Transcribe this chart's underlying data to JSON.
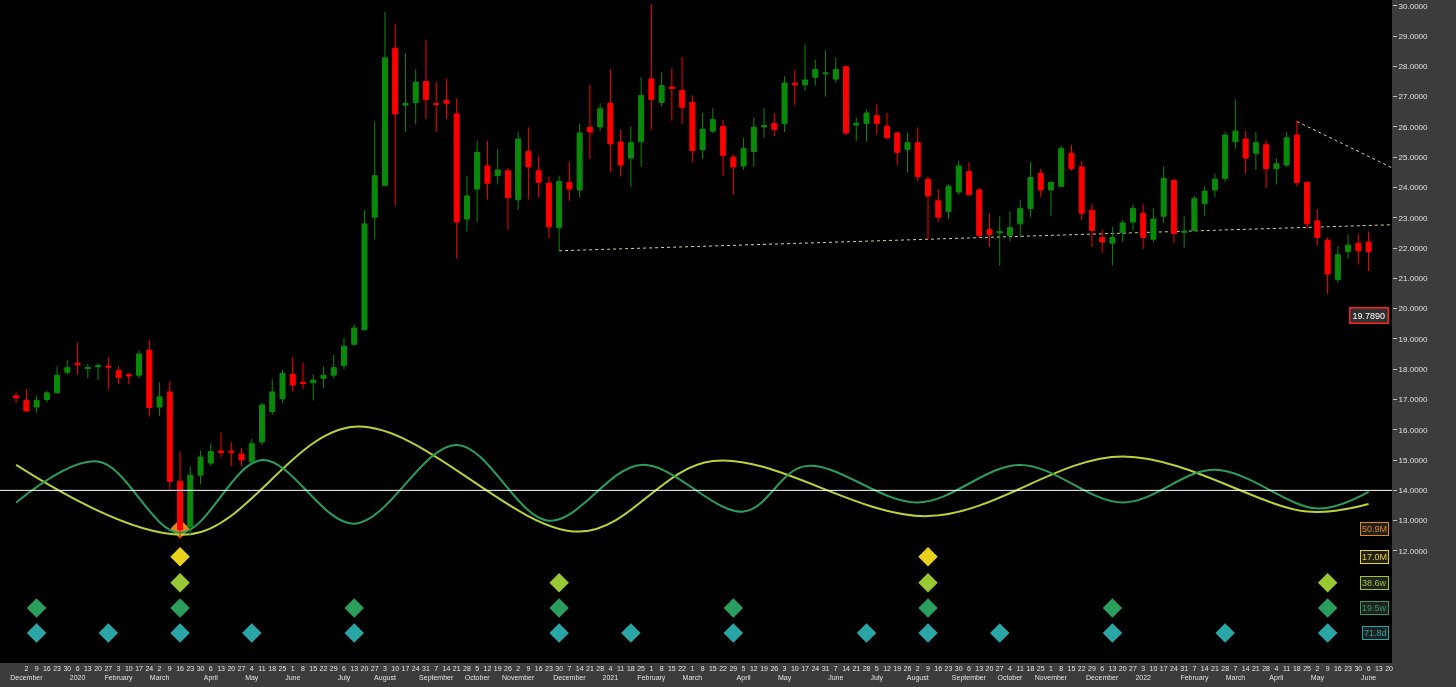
{
  "chart_data": {
    "type": "candlestick",
    "xlim": [
      "2019-11-14",
      "2022-06-22"
    ],
    "ylim": [
      8.3,
      30.19
    ],
    "yticks": [
      {
        "value": 12,
        "label": "12.0000"
      },
      {
        "value": 13,
        "label": "13.0000"
      },
      {
        "value": 14,
        "label": "14.0000"
      },
      {
        "value": 15,
        "label": "15.0000"
      },
      {
        "value": 16,
        "label": "16.0000"
      },
      {
        "value": 17,
        "label": "17.0000"
      },
      {
        "value": 18,
        "label": "18.0000"
      },
      {
        "value": 19,
        "label": "19.0000"
      },
      {
        "value": 20,
        "label": "20.0000"
      },
      {
        "value": 21,
        "label": "21.0000"
      },
      {
        "value": 22,
        "label": "22.0000"
      },
      {
        "value": 23,
        "label": "23.0000"
      },
      {
        "value": 24,
        "label": "24.0000"
      },
      {
        "value": 25,
        "label": "25.0000"
      },
      {
        "value": 26,
        "label": "26.0000"
      },
      {
        "value": 27,
        "label": "27.0000"
      },
      {
        "value": 28,
        "label": "28.0000"
      },
      {
        "value": 29,
        "label": "29.0000"
      },
      {
        "value": 30,
        "label": "30.0000"
      }
    ],
    "xticks": [
      {
        "value": "2019-12-02",
        "label": "2\nDecember"
      },
      {
        "value": "2019-12-09",
        "label": "9"
      },
      {
        "value": "2019-12-16",
        "label": "16"
      },
      {
        "value": "2019-12-23",
        "label": "23"
      },
      {
        "value": "2019-12-30",
        "label": "30"
      },
      {
        "value": "2020-01-06",
        "label": "6\n2020"
      },
      {
        "value": "2020-01-13",
        "label": "13"
      },
      {
        "value": "2020-01-20",
        "label": "20"
      },
      {
        "value": "2020-01-27",
        "label": "27"
      },
      {
        "value": "2020-02-03",
        "label": "3\nFebruary"
      },
      {
        "value": "2020-02-10",
        "label": "10"
      },
      {
        "value": "2020-02-17",
        "label": "17"
      },
      {
        "value": "2020-02-24",
        "label": "24"
      },
      {
        "value": "2020-03-02",
        "label": "2\nMarch"
      },
      {
        "value": "2020-03-09",
        "label": "9"
      },
      {
        "value": "2020-03-16",
        "label": "16"
      },
      {
        "value": "2020-03-23",
        "label": "23"
      },
      {
        "value": "2020-03-30",
        "label": "30"
      },
      {
        "value": "2020-04-06",
        "label": "6\nApril"
      },
      {
        "value": "2020-04-13",
        "label": "13"
      },
      {
        "value": "2020-04-20",
        "label": "20"
      },
      {
        "value": "2020-04-27",
        "label": "27"
      },
      {
        "value": "2020-05-04",
        "label": "4\nMay"
      },
      {
        "value": "2020-05-11",
        "label": "11"
      },
      {
        "value": "2020-05-18",
        "label": "18"
      },
      {
        "value": "2020-05-25",
        "label": "25"
      },
      {
        "value": "2020-06-01",
        "label": "1\nJune"
      },
      {
        "value": "2020-06-08",
        "label": "8"
      },
      {
        "value": "2020-06-15",
        "label": "15"
      },
      {
        "value": "2020-06-22",
        "label": "22"
      },
      {
        "value": "2020-06-29",
        "label": "29"
      },
      {
        "value": "2020-07-06",
        "label": "6\nJuly"
      },
      {
        "value": "2020-07-13",
        "label": "13"
      },
      {
        "value": "2020-07-20",
        "label": "20"
      },
      {
        "value": "2020-07-27",
        "label": "27"
      },
      {
        "value": "2020-08-03",
        "label": "3\nAugust"
      },
      {
        "value": "2020-08-10",
        "label": "10"
      },
      {
        "value": "2020-08-17",
        "label": "17"
      },
      {
        "value": "2020-08-24",
        "label": "24"
      },
      {
        "value": "2020-08-31",
        "label": "31"
      },
      {
        "value": "2020-09-07",
        "label": "7\nSeptember"
      },
      {
        "value": "2020-09-14",
        "label": "14"
      },
      {
        "value": "2020-09-21",
        "label": "21"
      },
      {
        "value": "2020-09-28",
        "label": "28"
      },
      {
        "value": "2020-10-05",
        "label": "5\nOctober"
      },
      {
        "value": "2020-10-12",
        "label": "12"
      },
      {
        "value": "2020-10-19",
        "label": "19"
      },
      {
        "value": "2020-10-26",
        "label": "26"
      },
      {
        "value": "2020-11-02",
        "label": "2\nNovember"
      },
      {
        "value": "2020-11-09",
        "label": "9"
      },
      {
        "value": "2020-11-16",
        "label": "16"
      },
      {
        "value": "2020-11-23",
        "label": "23"
      },
      {
        "value": "2020-11-30",
        "label": "30"
      },
      {
        "value": "2020-12-07",
        "label": "7\nDecember"
      },
      {
        "value": "2020-12-14",
        "label": "14"
      },
      {
        "value": "2020-12-21",
        "label": "21"
      },
      {
        "value": "2020-12-28",
        "label": "28"
      },
      {
        "value": "2021-01-04",
        "label": "4\n2021"
      },
      {
        "value": "2021-01-11",
        "label": "11"
      },
      {
        "value": "2021-01-18",
        "label": "18"
      },
      {
        "value": "2021-01-25",
        "label": "25"
      },
      {
        "value": "2021-02-01",
        "label": "1\nFebruary"
      },
      {
        "value": "2021-02-08",
        "label": "8"
      },
      {
        "value": "2021-02-15",
        "label": "15"
      },
      {
        "value": "2021-02-22",
        "label": "22"
      },
      {
        "value": "2021-03-01",
        "label": "1\nMarch"
      },
      {
        "value": "2021-03-08",
        "label": "8"
      },
      {
        "value": "2021-03-15",
        "label": "15"
      },
      {
        "value": "2021-03-22",
        "label": "22"
      },
      {
        "value": "2021-03-29",
        "label": "29"
      },
      {
        "value": "2021-04-05",
        "label": "5\nApril"
      },
      {
        "value": "2021-04-12",
        "label": "12"
      },
      {
        "value": "2021-04-19",
        "label": "19"
      },
      {
        "value": "2021-04-26",
        "label": "26"
      },
      {
        "value": "2021-05-03",
        "label": "3\nMay"
      },
      {
        "value": "2021-05-10",
        "label": "10"
      },
      {
        "value": "2021-05-17",
        "label": "17"
      },
      {
        "value": "2021-05-24",
        "label": "24"
      },
      {
        "value": "2021-05-31",
        "label": "31"
      },
      {
        "value": "2021-06-07",
        "label": "7\nJune"
      },
      {
        "value": "2021-06-14",
        "label": "14"
      },
      {
        "value": "2021-06-21",
        "label": "21"
      },
      {
        "value": "2021-06-28",
        "label": "28"
      },
      {
        "value": "2021-07-05",
        "label": "5\nJuly"
      },
      {
        "value": "2021-07-12",
        "label": "12"
      },
      {
        "value": "2021-07-19",
        "label": "19"
      },
      {
        "value": "2021-07-26",
        "label": "26"
      },
      {
        "value": "2021-08-02",
        "label": "2\nAugust"
      },
      {
        "value": "2021-08-09",
        "label": "9"
      },
      {
        "value": "2021-08-16",
        "label": "16"
      },
      {
        "value": "2021-08-23",
        "label": "23"
      },
      {
        "value": "2021-08-30",
        "label": "30"
      },
      {
        "value": "2021-09-06",
        "label": "6\nSeptember"
      },
      {
        "value": "2021-09-13",
        "label": "13"
      },
      {
        "value": "2021-09-20",
        "label": "20"
      },
      {
        "value": "2021-09-27",
        "label": "27"
      },
      {
        "value": "2021-10-04",
        "label": "4\nOctober"
      },
      {
        "value": "2021-10-11",
        "label": "11"
      },
      {
        "value": "2021-10-18",
        "label": "18"
      },
      {
        "value": "2021-10-25",
        "label": "25"
      },
      {
        "value": "2021-11-01",
        "label": "1\nNovember"
      },
      {
        "value": "2021-11-08",
        "label": "8"
      },
      {
        "value": "2021-11-15",
        "label": "15"
      },
      {
        "value": "2021-11-22",
        "label": "22"
      },
      {
        "value": "2021-11-29",
        "label": "29"
      },
      {
        "value": "2021-12-06",
        "label": "6\nDecember"
      },
      {
        "value": "2021-12-13",
        "label": "13"
      },
      {
        "value": "2021-12-20",
        "label": "20"
      },
      {
        "value": "2021-12-27",
        "label": "27"
      },
      {
        "value": "2022-01-03",
        "label": "3\n2022"
      },
      {
        "value": "2022-01-10",
        "label": "10"
      },
      {
        "value": "2022-01-17",
        "label": "17"
      },
      {
        "value": "2022-01-24",
        "label": "24"
      },
      {
        "value": "2022-01-31",
        "label": "31"
      },
      {
        "value": "2022-02-07",
        "label": "7\nFebruary"
      },
      {
        "value": "2022-02-14",
        "label": "14"
      },
      {
        "value": "2022-02-21",
        "label": "21"
      },
      {
        "value": "2022-02-28",
        "label": "28"
      },
      {
        "value": "2022-03-07",
        "label": "7\nMarch"
      },
      {
        "value": "2022-03-14",
        "label": "14"
      },
      {
        "value": "2022-03-21",
        "label": "21"
      },
      {
        "value": "2022-03-28",
        "label": "28"
      },
      {
        "value": "2022-04-04",
        "label": "4\nApril"
      },
      {
        "value": "2022-04-11",
        "label": "11"
      },
      {
        "value": "2022-04-18",
        "label": "18"
      },
      {
        "value": "2022-04-25",
        "label": "25"
      },
      {
        "value": "2022-05-02",
        "label": "2\nMay"
      },
      {
        "value": "2022-05-09",
        "label": "9"
      },
      {
        "value": "2022-05-16",
        "label": "16"
      },
      {
        "value": "2022-05-23",
        "label": "23"
      },
      {
        "value": "2022-05-30",
        "label": "30"
      },
      {
        "value": "2022-06-06",
        "label": "6\nJune"
      },
      {
        "value": "2022-06-13",
        "label": "13"
      },
      {
        "value": "2022-06-20",
        "label": "20"
      }
    ],
    "grid": false,
    "legend": false,
    "ref_lines": [
      {
        "axis": "y",
        "value": 14.0,
        "color": "#ffffff"
      }
    ],
    "annotations": [
      {
        "text": "19.7890",
        "x": "2022-06-06",
        "y": 19.789
      }
    ],
    "series": [
      {
        "type": "line",
        "color": "#b8d436",
        "x": [
          "2019-11-25",
          "2020-03-23",
          "2020-07-13",
          "2020-12-14",
          "2021-03-15",
          "2021-08-09",
          "2021-12-20",
          "2022-04-25",
          "2022-06-06"
        ],
        "values": [
          14.84,
          12.55,
          16.1,
          12.64,
          14.97,
          13.15,
          15.12,
          13.3,
          13.55
        ]
      },
      {
        "type": "line",
        "color": "#2a9e5c",
        "x": [
          "2019-11-25",
          "2020-01-20",
          "2020-03-16",
          "2020-05-11",
          "2020-07-13",
          "2020-09-21",
          "2020-11-23",
          "2021-01-25",
          "2021-04-05",
          "2021-05-17",
          "2021-08-02",
          "2021-10-11",
          "2021-12-20",
          "2022-02-21",
          "2022-05-02",
          "2022-06-06"
        ],
        "values": [
          13.6,
          14.95,
          12.6,
          15.0,
          12.9,
          15.5,
          13.0,
          14.84,
          13.3,
          14.8,
          13.6,
          14.84,
          13.6,
          14.68,
          13.4,
          13.95
        ]
      },
      {
        "type": "line",
        "color": "#c8d890",
        "line_style": "dotted",
        "x": [
          "2020-11-30",
          "2022-06-22"
        ],
        "values": [
          21.91,
          22.77
        ]
      },
      {
        "type": "line",
        "color": "#c8d890",
        "line_style": "dotted",
        "x": [
          "2022-04-18",
          "2022-06-22"
        ],
        "values": [
          26.18,
          24.65
        ]
      },
      {
        "colors": [
          "#ff0000",
          "#ff0000",
          "#0a8a0a",
          "#0a8a0a",
          "#0a8a0a",
          "#0a8a0a",
          "#ff0000",
          "#0a8a0a",
          "#0a8a0a",
          "#ff0000",
          "#ff0000",
          "#ff0000",
          "#0a8a0a",
          "#ff0000",
          "#0a8a0a",
          "#ff0000",
          "#ff0000",
          "#0a8a0a",
          "#0a8a0a",
          "#0a8a0a",
          "#ff0000",
          "#ff0000",
          "#ff0000",
          "#0a8a0a",
          "#0a8a0a",
          "#0a8a0a",
          "#0a8a0a",
          "#ff0000",
          "#ff0000",
          "#0a8a0a",
          "#0a8a0a",
          "#0a8a0a",
          "#0a8a0a",
          "#0a8a0a",
          "#0a8a0a",
          "#0a8a0a",
          "#0a8a0a",
          "#ff0000",
          "#0a8a0a",
          "#0a8a0a",
          "#ff0000",
          "#ff0000",
          "#ff0000",
          "#ff0000",
          "#0a8a0a",
          "#0a8a0a",
          "#ff0000",
          "#0a8a0a",
          "#ff0000",
          "#0a8a0a",
          "#ff0000",
          "#ff0000",
          "#ff0000",
          "#0a8a0a",
          "#ff0000",
          "#0a8a0a",
          "#ff0000",
          "#0a8a0a",
          "#ff0000",
          "#ff0000",
          "#0a8a0a",
          "#0a8a0a",
          "#ff0000",
          "#0a8a0a",
          "#ff0000",
          "#ff0000",
          "#ff0000",
          "#0a8a0a",
          "#0a8a0a",
          "#ff0000",
          "#ff0000",
          "#0a8a0a",
          "#0a8a0a",
          "#0a8a0a",
          "#ff0000",
          "#0a8a0a",
          "#ff0000",
          "#0a8a0a",
          "#0a8a0a",
          "#0a8a0a",
          "#0a8a0a",
          "#ff0000",
          "#0a8a0a",
          "#0a8a0a",
          "#ff0000",
          "#ff0000",
          "#ff0000",
          "#0a8a0a",
          "#ff0000",
          "#ff0000",
          "#ff0000",
          "#0a8a0a",
          "#0a8a0a",
          "#ff0000",
          "#ff0000",
          "#ff0000",
          "#0a8a0a",
          "#0a8a0a",
          "#0a8a0a",
          "#0a8a0a",
          "#ff0000",
          "#0a8a0a",
          "#0a8a0a",
          "#ff0000",
          "#ff0000",
          "#ff0000",
          "#ff0000",
          "#0a8a0a",
          "#0a8a0a",
          "#0a8a0a",
          "#ff0000",
          "#0a8a0a",
          "#0a8a0a",
          "#ff0000",
          "#0a8a0a",
          "#0a8a0a",
          "#0a8a0a",
          "#0a8a0a",
          "#0a8a0a",
          "#0a8a0a",
          "#ff0000",
          "#0a8a0a",
          "#ff0000",
          "#0a8a0a",
          "#0a8a0a",
          "#ff0000",
          "#ff0000",
          "#ff0000",
          "#ff0000",
          "#0a8a0a",
          "#0a8a0a",
          "#ff0000",
          "#ff0000"
        ],
        "x": [
          "2019-11-25",
          "2019-12-02",
          "2019-12-09",
          "2019-12-16",
          "2019-12-23",
          "2019-12-30",
          "2020-01-06",
          "2020-01-13",
          "2020-01-20",
          "2020-01-27",
          "2020-02-03",
          "2020-02-10",
          "2020-02-17",
          "2020-02-24",
          "2020-03-02",
          "2020-03-09",
          "2020-03-16",
          "2020-03-23",
          "2020-03-30",
          "2020-04-06",
          "2020-04-13",
          "2020-04-20",
          "2020-04-27",
          "2020-05-04",
          "2020-05-11",
          "2020-05-18",
          "2020-05-25",
          "2020-06-01",
          "2020-06-08",
          "2020-06-15",
          "2020-06-22",
          "2020-06-29",
          "2020-07-06",
          "2020-07-13",
          "2020-07-20",
          "2020-07-27",
          "2020-08-03",
          "2020-08-10",
          "2020-08-17",
          "2020-08-24",
          "2020-08-31",
          "2020-09-07",
          "2020-09-14",
          "2020-09-21",
          "2020-09-28",
          "2020-10-05",
          "2020-10-12",
          "2020-10-19",
          "2020-10-26",
          "2020-11-02",
          "2020-11-09",
          "2020-11-16",
          "2020-11-23",
          "2020-11-30",
          "2020-12-07",
          "2020-12-14",
          "2020-12-21",
          "2020-12-28",
          "2021-01-04",
          "2021-01-11",
          "2021-01-18",
          "2021-01-25",
          "2021-02-01",
          "2021-02-08",
          "2021-02-15",
          "2021-02-22",
          "2021-03-01",
          "2021-03-08",
          "2021-03-15",
          "2021-03-22",
          "2021-03-29",
          "2021-04-05",
          "2021-04-12",
          "2021-04-19",
          "2021-04-26",
          "2021-05-03",
          "2021-05-10",
          "2021-05-17",
          "2021-05-24",
          "2021-05-31",
          "2021-06-07",
          "2021-06-14",
          "2021-06-21",
          "2021-06-28",
          "2021-07-05",
          "2021-07-12",
          "2021-07-19",
          "2021-07-26",
          "2021-08-02",
          "2021-08-09",
          "2021-08-16",
          "2021-08-23",
          "2021-08-30",
          "2021-09-06",
          "2021-09-13",
          "2021-09-20",
          "2021-09-27",
          "2021-10-04",
          "2021-10-11",
          "2021-10-18",
          "2021-10-25",
          "2021-11-01",
          "2021-11-08",
          "2021-11-15",
          "2021-11-22",
          "2021-11-29",
          "2021-12-06",
          "2021-12-13",
          "2021-12-20",
          "2021-12-27",
          "2022-01-03",
          "2022-01-10",
          "2022-01-17",
          "2022-01-24",
          "2022-01-31",
          "2022-02-07",
          "2022-02-14",
          "2022-02-21",
          "2022-02-28",
          "2022-03-07",
          "2022-03-14",
          "2022-03-21",
          "2022-03-28",
          "2022-04-04",
          "2022-04-11",
          "2022-04-18",
          "2022-04-25",
          "2022-05-02",
          "2022-05-09",
          "2022-05-16",
          "2022-05-23",
          "2022-05-30",
          "2022-06-06"
        ],
        "ohlc": [
          [
            17.12,
            17.23,
            16.88,
            17.05
          ],
          [
            16.97,
            17.35,
            16.59,
            16.62
          ],
          [
            16.75,
            17.13,
            16.56,
            16.97
          ],
          [
            17.0,
            17.29,
            16.9,
            17.22
          ],
          [
            17.22,
            18.09,
            17.2,
            17.8
          ],
          [
            17.9,
            18.3,
            17.83,
            18.05
          ],
          [
            18.2,
            18.88,
            17.83,
            18.15
          ],
          [
            18.02,
            18.18,
            17.7,
            18.06
          ],
          [
            18.08,
            18.2,
            17.64,
            18.12
          ],
          [
            18.1,
            18.4,
            17.35,
            18.07
          ],
          [
            17.95,
            18.1,
            17.5,
            17.73
          ],
          [
            17.82,
            17.87,
            17.5,
            17.78
          ],
          [
            17.8,
            18.63,
            17.7,
            18.5
          ],
          [
            18.63,
            18.97,
            16.43,
            16.73
          ],
          [
            16.75,
            17.57,
            16.46,
            17.09
          ],
          [
            17.25,
            17.6,
            14.0,
            14.3
          ],
          [
            14.3,
            15.3,
            12.4,
            12.7
          ],
          [
            12.8,
            14.8,
            12.5,
            14.5
          ],
          [
            14.5,
            15.3,
            14.2,
            15.1
          ],
          [
            14.9,
            15.55,
            14.8,
            15.28
          ],
          [
            15.3,
            15.9,
            15.1,
            15.25
          ],
          [
            15.3,
            15.6,
            14.8,
            15.26
          ],
          [
            15.2,
            15.4,
            14.8,
            15.0
          ],
          [
            14.95,
            15.7,
            14.9,
            15.54
          ],
          [
            15.6,
            16.9,
            15.5,
            16.82
          ],
          [
            16.6,
            17.67,
            16.5,
            17.25
          ],
          [
            17.03,
            17.98,
            16.9,
            17.86
          ],
          [
            17.83,
            18.4,
            17.26,
            17.48
          ],
          [
            17.57,
            18.21,
            17.35,
            17.53
          ],
          [
            17.55,
            17.83,
            16.97,
            17.64
          ],
          [
            17.7,
            18.09,
            17.38,
            17.8
          ],
          [
            17.8,
            18.47,
            17.7,
            18.05
          ],
          [
            18.12,
            19.04,
            17.99,
            18.76
          ],
          [
            18.82,
            19.49,
            18.79,
            19.36
          ],
          [
            19.3,
            23.25,
            19.3,
            22.8
          ],
          [
            23.02,
            26.18,
            22.29,
            24.39
          ],
          [
            24.07,
            29.8,
            24.04,
            28.28
          ],
          [
            28.6,
            29.4,
            23.4,
            26.43
          ],
          [
            26.72,
            28.44,
            25.83,
            26.78
          ],
          [
            26.8,
            27.9,
            26.08,
            27.48
          ],
          [
            27.5,
            28.88,
            26.27,
            26.9
          ],
          [
            26.77,
            27.48,
            25.83,
            26.74
          ],
          [
            26.88,
            27.6,
            26.27,
            26.78
          ],
          [
            26.43,
            26.94,
            21.65,
            22.86
          ],
          [
            22.96,
            24.39,
            22.55,
            23.72
          ],
          [
            23.95,
            25.54,
            22.86,
            25.16
          ],
          [
            24.71,
            25.54,
            23.6,
            24.14
          ],
          [
            24.39,
            25.28,
            24.1,
            24.58
          ],
          [
            24.55,
            24.65,
            22.6,
            23.66
          ],
          [
            23.6,
            25.83,
            23.25,
            25.6
          ],
          [
            25.19,
            25.99,
            23.6,
            24.68
          ],
          [
            24.55,
            25.06,
            23.66,
            24.17
          ],
          [
            24.14,
            24.36,
            22.32,
            22.7
          ],
          [
            22.67,
            24.39,
            21.9,
            24.2
          ],
          [
            24.17,
            24.84,
            23.56,
            23.95
          ],
          [
            23.92,
            26.11,
            23.66,
            25.8
          ],
          [
            25.99,
            27.39,
            24.94,
            25.83
          ],
          [
            26.0,
            26.78,
            25.86,
            26.6
          ],
          [
            26.78,
            27.9,
            24.49,
            25.44
          ],
          [
            25.5,
            25.9,
            24.36,
            24.74
          ],
          [
            24.97,
            26.02,
            24.01,
            25.48
          ],
          [
            25.51,
            27.64,
            24.68,
            27.04
          ],
          [
            27.58,
            30.05,
            25.9,
            26.91
          ],
          [
            26.81,
            27.8,
            26.69,
            27.36
          ],
          [
            27.32,
            27.93,
            26.21,
            27.27
          ],
          [
            27.2,
            28.31,
            26.11,
            26.65
          ],
          [
            26.81,
            27.04,
            24.84,
            25.22
          ],
          [
            25.25,
            26.46,
            24.94,
            25.92
          ],
          [
            25.86,
            26.62,
            25.8,
            26.24
          ],
          [
            26.02,
            26.24,
            24.39,
            25.06
          ],
          [
            25.0,
            25.09,
            23.76,
            24.68
          ],
          [
            24.71,
            25.64,
            24.58,
            25.28
          ],
          [
            25.19,
            26.3,
            24.68,
            25.99
          ],
          [
            26.0,
            26.62,
            25.64,
            26.04
          ],
          [
            26.11,
            26.46,
            25.7,
            25.92
          ],
          [
            26.11,
            27.67,
            25.83,
            27.45
          ],
          [
            27.44,
            27.87,
            26.72,
            27.39
          ],
          [
            27.39,
            28.73,
            27.2,
            27.55
          ],
          [
            27.64,
            28.22,
            27.36,
            27.9
          ],
          [
            27.75,
            28.53,
            27.0,
            27.78
          ],
          [
            27.58,
            28.28,
            27.45,
            27.9
          ],
          [
            27.99,
            28.03,
            25.73,
            25.8
          ],
          [
            26.06,
            26.3,
            25.54,
            26.12
          ],
          [
            26.11,
            26.56,
            25.51,
            26.46
          ],
          [
            26.37,
            26.75,
            25.76,
            26.11
          ],
          [
            26.02,
            26.46,
            25.6,
            25.64
          ],
          [
            25.8,
            25.83,
            24.74,
            25.16
          ],
          [
            25.25,
            25.8,
            24.49,
            25.48
          ],
          [
            25.48,
            25.99,
            24.2,
            24.36
          ],
          [
            24.27,
            24.36,
            22.29,
            23.72
          ],
          [
            23.56,
            23.95,
            22.86,
            23.02
          ],
          [
            23.21,
            24.11,
            22.96,
            24.04
          ],
          [
            23.85,
            24.87,
            23.76,
            24.71
          ],
          [
            24.52,
            24.84,
            23.72,
            23.76
          ],
          [
            23.92,
            23.98,
            22.32,
            22.42
          ],
          [
            22.61,
            23.15,
            22.04,
            22.45
          ],
          [
            22.5,
            23.05,
            21.43,
            22.55
          ],
          [
            22.42,
            23.21,
            22.23,
            22.67
          ],
          [
            22.8,
            23.6,
            22.35,
            23.31
          ],
          [
            23.31,
            24.84,
            23.02,
            24.33
          ],
          [
            24.46,
            24.62,
            23.69,
            23.92
          ],
          [
            23.92,
            24.2,
            23.05,
            24.17
          ],
          [
            24.04,
            25.38,
            24.01,
            25.28
          ],
          [
            25.13,
            25.41,
            24.55,
            24.62
          ],
          [
            24.68,
            24.87,
            22.93,
            23.15
          ],
          [
            23.25,
            23.44,
            22.04,
            22.58
          ],
          [
            22.35,
            22.61,
            21.84,
            22.2
          ],
          [
            22.16,
            22.7,
            21.43,
            22.35
          ],
          [
            22.51,
            22.93,
            22.2,
            22.83
          ],
          [
            22.86,
            23.44,
            22.58,
            23.31
          ],
          [
            23.15,
            23.44,
            21.97,
            22.35
          ],
          [
            22.29,
            23.31,
            22.2,
            22.96
          ],
          [
            23.05,
            24.71,
            22.83,
            24.3
          ],
          [
            24.23,
            24.3,
            22.16,
            22.48
          ],
          [
            22.52,
            23.05,
            22.0,
            22.55
          ],
          [
            22.58,
            23.72,
            22.55,
            23.63
          ],
          [
            23.47,
            24.04,
            23.05,
            23.88
          ],
          [
            23.92,
            24.46,
            23.69,
            24.27
          ],
          [
            24.3,
            25.83,
            24.17,
            25.73
          ],
          [
            25.51,
            26.91,
            25.28,
            25.86
          ],
          [
            25.6,
            25.86,
            24.46,
            24.97
          ],
          [
            25.13,
            25.83,
            24.58,
            25.48
          ],
          [
            25.41,
            25.57,
            23.98,
            24.62
          ],
          [
            24.62,
            24.97,
            24.1,
            24.78
          ],
          [
            24.74,
            25.83,
            24.68,
            25.64
          ],
          [
            25.73,
            26.21,
            24.04,
            24.17
          ],
          [
            24.17,
            24.2,
            22.67,
            22.8
          ],
          [
            22.9,
            23.28,
            22.1,
            22.35
          ],
          [
            22.26,
            22.35,
            20.48,
            21.14
          ],
          [
            20.96,
            22.07,
            20.86,
            21.78
          ],
          [
            21.88,
            22.45,
            21.65,
            22.1
          ],
          [
            22.16,
            22.45,
            21.46,
            21.91
          ],
          [
            22.2,
            22.55,
            21.24,
            21.88
          ]
        ]
      },
      {
        "type": "scatter",
        "name": "50.9M",
        "color": "#e0861c",
        "marker": "diamond",
        "x": [
          "2020-03-16"
        ],
        "values": [
          12.73
        ]
      },
      {
        "type": "scatter",
        "name": "17.0M",
        "color": "#e8d21c",
        "marker": "diamond",
        "x": [
          "2020-03-16",
          "2021-08-09"
        ],
        "values": [
          11.81,
          11.81
        ]
      },
      {
        "type": "scatter",
        "name": "38.6w",
        "color": "#98c832",
        "marker": "diamond",
        "x": [
          "2020-03-16",
          "2020-11-30",
          "2021-08-09",
          "2022-05-09"
        ],
        "values": [
          10.95,
          10.95,
          10.95,
          10.95
        ]
      },
      {
        "type": "scatter",
        "name": "19.5w",
        "color": "#2a9e5c",
        "marker": "diamond",
        "x": [
          "2019-12-09",
          "2020-03-16",
          "2020-07-13",
          "2020-11-30",
          "2021-03-29",
          "2021-08-09",
          "2021-12-13",
          "2022-05-09"
        ],
        "values": [
          10.12,
          10.12,
          10.12,
          10.12,
          10.12,
          10.12,
          10.12,
          10.12
        ]
      },
      {
        "type": "scatter",
        "name": "71.8d",
        "color": "#2aa6a6",
        "marker": "diamond",
        "x": [
          "2019-12-09",
          "2020-01-27",
          "2020-03-16",
          "2020-05-04",
          "2020-07-13",
          "2020-11-30",
          "2021-01-18",
          "2021-03-29",
          "2021-06-28",
          "2021-08-09",
          "2021-09-27",
          "2021-12-13",
          "2022-02-28",
          "2022-05-09"
        ],
        "values": [
          9.29,
          9.29,
          9.29,
          9.29,
          9.29,
          9.29,
          9.29,
          9.29,
          9.29,
          9.29,
          9.29,
          9.29,
          9.29,
          9.29
        ]
      }
    ]
  }
}
